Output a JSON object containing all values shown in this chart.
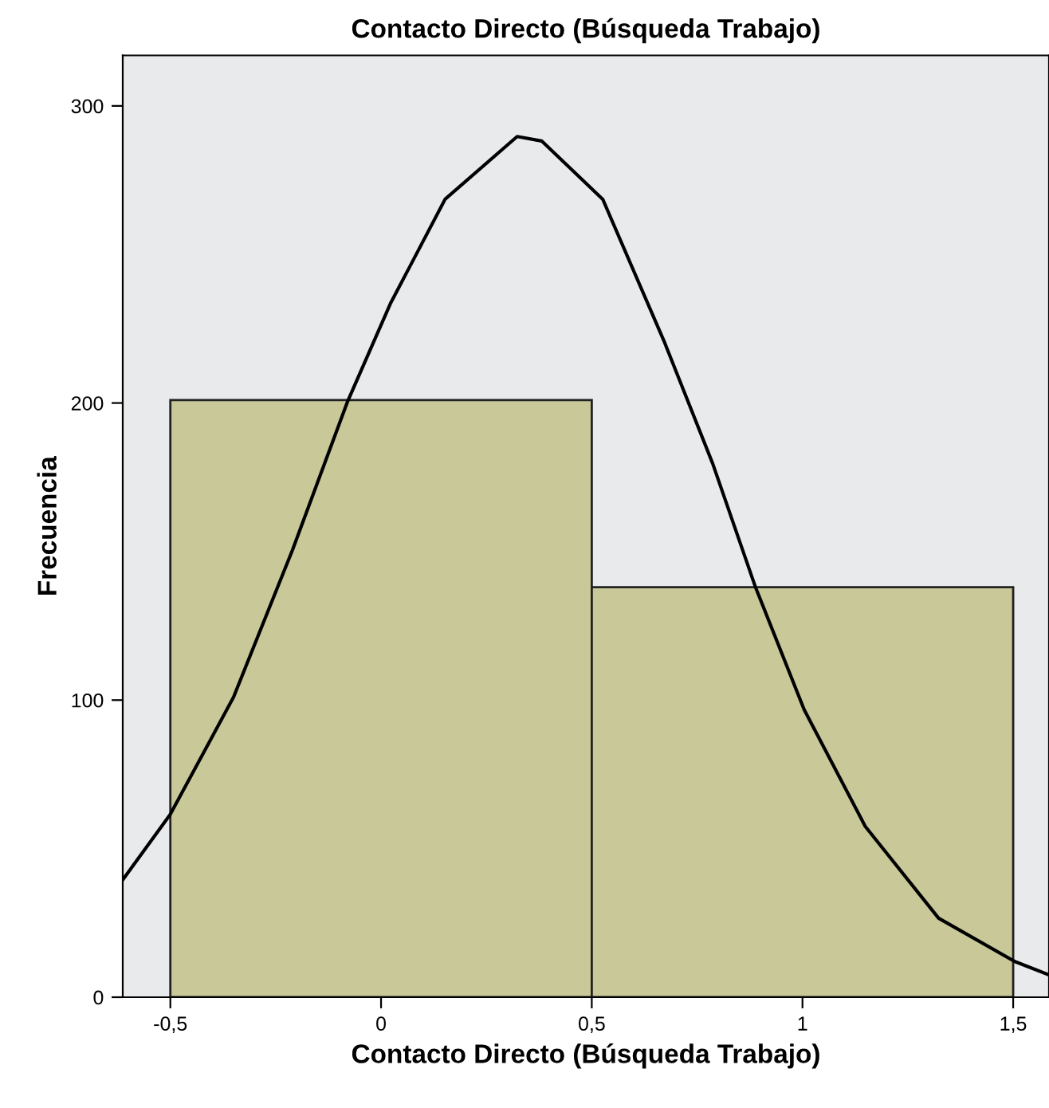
{
  "chart_data": {
    "type": "histogram",
    "title": "Contacto Directo (Búsqueda Trabajo)",
    "xlabel": "Contacto Directo (Búsqueda Trabajo)",
    "ylabel": "Frecuencia",
    "bins": [
      -0.5,
      0.5,
      1.5
    ],
    "series": [
      {
        "color": "#c8c898",
        "values": [
          201,
          138
        ]
      },
      {
        "type": "line",
        "color": "#000000",
        "x": [
          -0.613,
          -0.5,
          -0.35,
          -0.21,
          -0.08,
          0.022,
          0.152,
          0.323,
          0.381,
          0.526,
          0.671,
          0.787,
          0.888,
          1.004,
          1.149,
          1.323,
          1.504,
          1.585
        ],
        "values": [
          39.5,
          61.6,
          101,
          150.6,
          200.3,
          233.4,
          268.6,
          289.7,
          288.2,
          268.6,
          221,
          179.6,
          138.2,
          96.8,
          57.5,
          26.6,
          12,
          7.5
        ]
      }
    ],
    "xlim": [
      -0.613,
      1.585
    ],
    "xticks": [
      {
        "value": -0.5,
        "label": "-0,5"
      },
      0,
      {
        "value": 0.5,
        "label": "0,5"
      },
      1,
      {
        "value": 1.5,
        "label": "1,5"
      }
    ],
    "ylim": [
      0,
      317
    ],
    "yticks": [
      0,
      100,
      200,
      300
    ],
    "grid": false,
    "legend": false
  }
}
